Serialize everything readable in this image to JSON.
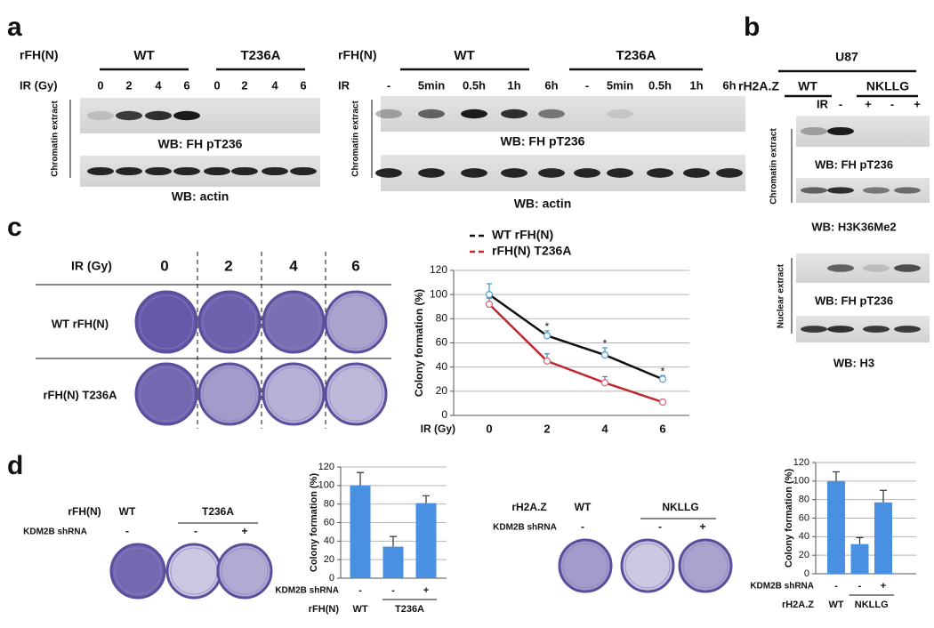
{
  "figure": {
    "panel_labels": [
      "a",
      "b",
      "c",
      "d"
    ],
    "a_left": {
      "construct": "rFH(N)",
      "groups": [
        "WT",
        "T236A"
      ],
      "treatment": "IR (Gy)",
      "lanes": [
        "0",
        "2",
        "4",
        "6",
        "0",
        "2",
        "4",
        "6"
      ],
      "fraction": "Chromatin extract",
      "blots": [
        "WB: FH pT236",
        "WB: actin"
      ]
    },
    "a_right": {
      "construct": "rFH(N)",
      "groups": [
        "WT",
        "T236A"
      ],
      "treatment": "IR",
      "lanes": [
        "-",
        "5min",
        "0.5h",
        "1h",
        "6h",
        "-",
        "5min",
        "0.5h",
        "1h",
        "6h"
      ],
      "fraction": "Chromatin extract",
      "blots": [
        "WB: FH pT236",
        "WB: actin"
      ]
    },
    "b": {
      "cell_line": "U87",
      "construct": "rH2A.Z",
      "groups": [
        "WT",
        "NKLLG"
      ],
      "treatment": "IR",
      "lanes": [
        "-",
        "+",
        "-",
        "+"
      ],
      "fractions": [
        "Chromatin extract",
        "Nuclear extract"
      ],
      "blots": [
        "WB: FH pT236",
        "WB: H3K36Me2",
        "WB: FH pT236",
        "WB: H3"
      ]
    },
    "c_plates": {
      "treatment": "IR (Gy)",
      "columns": [
        "0",
        "2",
        "4",
        "6"
      ],
      "rows": [
        "WT rFH(N)",
        "rFH(N) T236A"
      ]
    },
    "d_left_plates": {
      "construct": "rFH(N)",
      "groups": [
        "WT",
        "T236A"
      ],
      "shrna": "KDM2B shRNA",
      "lanes": [
        "-",
        "-",
        "+"
      ]
    },
    "d_right_plates": {
      "construct": "rH2A.Z",
      "groups": [
        "WT",
        "NKLLG"
      ],
      "shrna": "KDM2B shRNA",
      "lanes": [
        "-",
        "-",
        "+"
      ]
    }
  },
  "chart_data": [
    {
      "type": "line",
      "ylabel": "Colony formation (%)",
      "xlabel": "IR (Gy)",
      "categories": [
        "0",
        "2",
        "4",
        "6"
      ],
      "ylim": [
        0,
        120
      ],
      "yticks": [
        0,
        20,
        40,
        60,
        80,
        100,
        120
      ],
      "grid": true,
      "series": [
        {
          "name": "WT rFH(N)",
          "color": "#111111",
          "values": [
            100,
            66,
            50,
            30
          ],
          "errors": [
            9,
            4,
            6,
            3
          ]
        },
        {
          "name": "rFH(N) T236A",
          "color": "#c0282d",
          "values": [
            92,
            45,
            27,
            11
          ],
          "errors": [
            5,
            6,
            5,
            2
          ]
        }
      ],
      "annotations": [
        "*",
        "*",
        "*"
      ]
    },
    {
      "type": "bar",
      "ylabel": "Colony formation (%)",
      "categories": [
        "-",
        "-",
        "+"
      ],
      "category_label": "KDM2B shRNA",
      "groups": [
        "WT",
        "T236A"
      ],
      "group_label": "rFH(N)",
      "values": [
        100,
        34,
        81
      ],
      "errors": [
        14,
        11,
        8
      ],
      "color": "#4a90e2",
      "ylim": [
        0,
        120
      ],
      "yticks": [
        0,
        20,
        40,
        60,
        80,
        100,
        120
      ],
      "grid": true
    },
    {
      "type": "bar",
      "ylabel": "Colony formation (%)",
      "categories": [
        "-",
        "-",
        "+"
      ],
      "category_label": "KDM2B shRNA",
      "groups": [
        "WT",
        "NKLLG"
      ],
      "group_label": "rH2A.Z",
      "values": [
        100,
        32,
        77
      ],
      "errors": [
        10,
        7,
        13
      ],
      "color": "#4a90e2",
      "ylim": [
        0,
        120
      ],
      "yticks": [
        0,
        20,
        40,
        60,
        80,
        100,
        120
      ],
      "grid": true
    }
  ]
}
